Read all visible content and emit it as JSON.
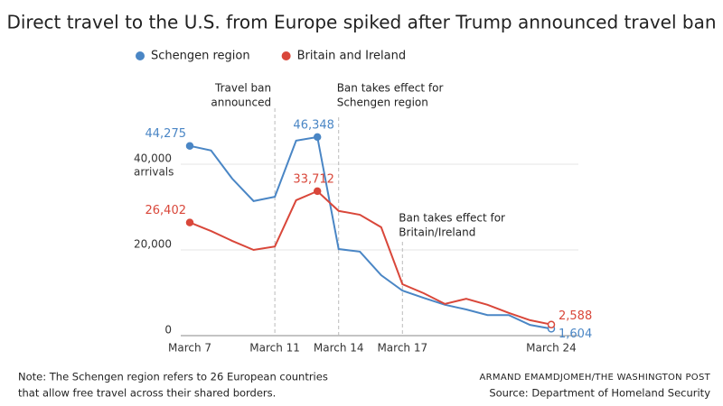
{
  "chart_data": {
    "type": "line",
    "title": "Direct travel to the U.S. from Europe spiked after Trump announced travel ban",
    "categories": [
      "March 7",
      null,
      null,
      null,
      "March 11",
      null,
      null,
      "March 14",
      null,
      null,
      "March 17",
      null,
      null,
      null,
      null,
      null,
      null,
      "March 24"
    ],
    "series": [
      {
        "name": "Schengen region",
        "color": "#4a86c5",
        "values": [
          44275,
          43200,
          36600,
          31400,
          32400,
          45500,
          46348,
          20200,
          19600,
          14100,
          10500,
          8800,
          7200,
          6100,
          4800,
          4800,
          2500,
          1604
        ],
        "value_labels": [
          "44,275",
          null,
          null,
          null,
          null,
          null,
          "46,348",
          null,
          null,
          null,
          null,
          null,
          null,
          null,
          null,
          null,
          null,
          "1,604"
        ]
      },
      {
        "name": "Britain and Ireland",
        "color": "#d9473a",
        "values": [
          26402,
          24400,
          22100,
          20000,
          20800,
          31600,
          33712,
          29100,
          28200,
          25300,
          12000,
          9900,
          7400,
          8600,
          7200,
          5300,
          3600,
          2588
        ],
        "value_labels": [
          "26,402",
          null,
          null,
          null,
          null,
          null,
          "33,712",
          null,
          null,
          null,
          null,
          null,
          null,
          null,
          null,
          null,
          null,
          "2,588"
        ]
      }
    ],
    "ylim": [
      0,
      48000
    ],
    "yticks": [
      0,
      {
        "value": 20000,
        "label": "20,000"
      },
      {
        "value": 40000,
        "label": "40,000"
      }
    ],
    "y_unit_label": "arrivals",
    "grid": true,
    "annotations": [
      {
        "x": "March 11",
        "text": [
          "Travel ban",
          "announced"
        ]
      },
      {
        "x": "March 14",
        "text": [
          "Ban takes effect for",
          "Schengen region"
        ]
      },
      {
        "x": "March 17",
        "text": [
          "Ban takes effect for",
          "Britain/Ireland"
        ]
      }
    ],
    "note": [
      "Note: The Schengen region refers to 26 European countries",
      "that allow free travel across their shared borders."
    ],
    "credit": "ARMAND EMAMDJOMEH/THE WASHINGTON POST",
    "source": "Source: Department of Homeland Security"
  }
}
